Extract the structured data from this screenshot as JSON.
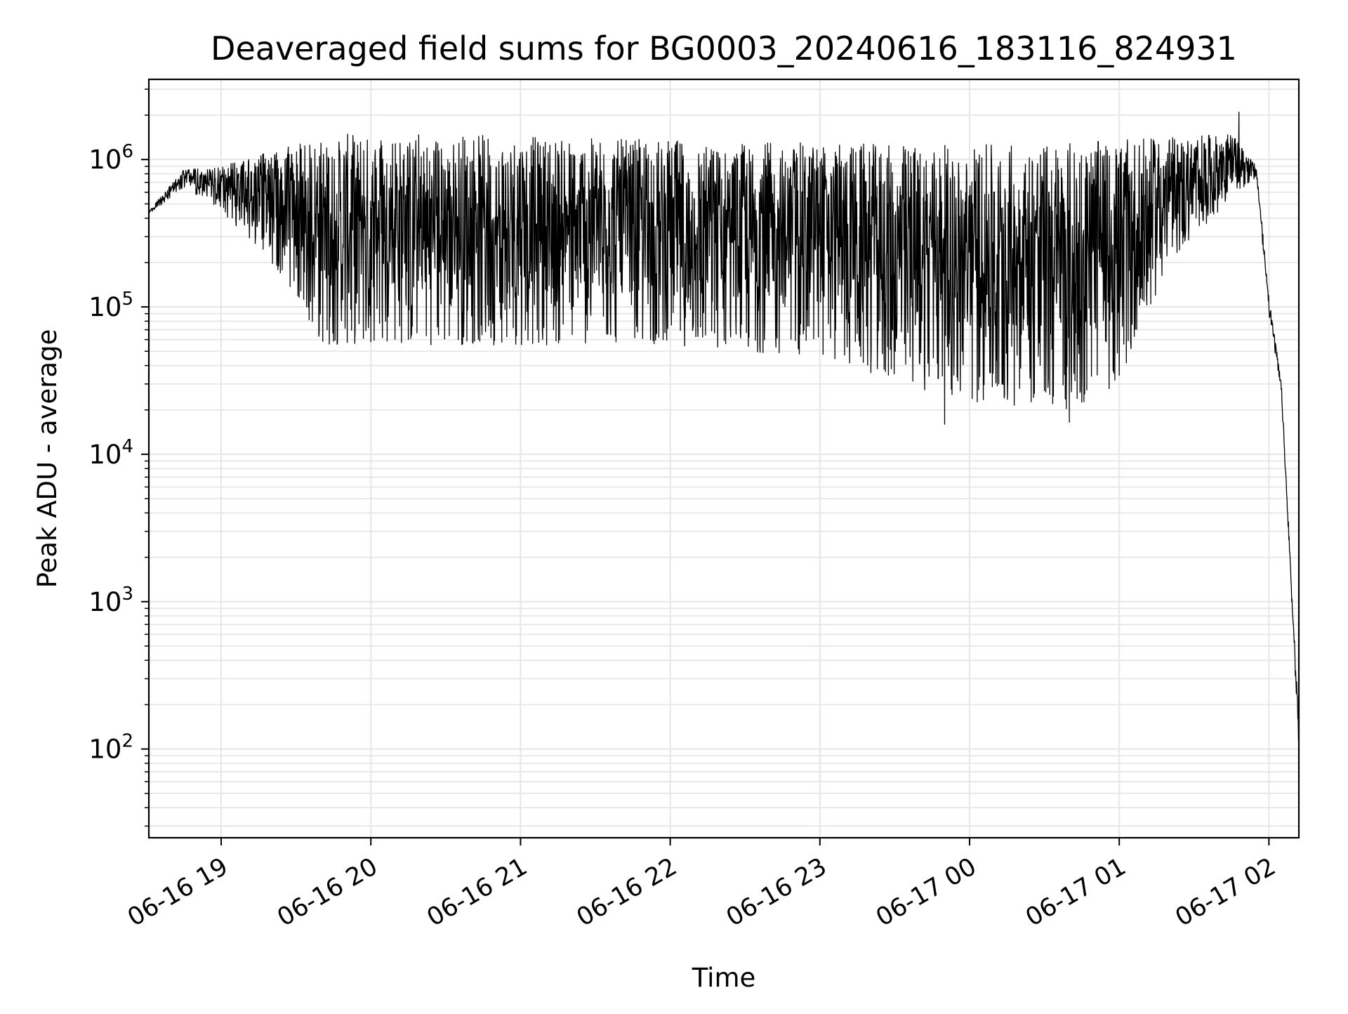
{
  "chart_data": {
    "type": "line",
    "title": "Deaveraged field sums for BG0003_20240616_183116_824931",
    "xlabel": "Time",
    "ylabel": "Peak ADU - average",
    "yscale": "log",
    "ylim": [
      25,
      3500000
    ],
    "xlim": [
      "2024-06-16 18:31",
      "2024-06-17 02:12"
    ],
    "grid": true,
    "line_color": "#000000",
    "grid_color": "#e6e6e6",
    "xticks": [
      {
        "time": "2024-06-16 19:00",
        "label": "06-16 19"
      },
      {
        "time": "2024-06-16 20:00",
        "label": "06-16 20"
      },
      {
        "time": "2024-06-16 21:00",
        "label": "06-16 21"
      },
      {
        "time": "2024-06-16 22:00",
        "label": "06-16 22"
      },
      {
        "time": "2024-06-16 23:00",
        "label": "06-16 23"
      },
      {
        "time": "2024-06-17 00:00",
        "label": "06-17 00"
      },
      {
        "time": "2024-06-17 01:00",
        "label": "06-17 01"
      },
      {
        "time": "2024-06-17 02:00",
        "label": "06-17 02"
      }
    ],
    "yticks": [
      {
        "value": 100,
        "base": "10",
        "exp": "2"
      },
      {
        "value": 1000,
        "base": "10",
        "exp": "3"
      },
      {
        "value": 10000,
        "base": "10",
        "exp": "4"
      },
      {
        "value": 100000,
        "base": "10",
        "exp": "5"
      },
      {
        "value": 1000000,
        "base": "10",
        "exp": "6"
      }
    ],
    "series": [
      {
        "upper_envelope": [
          {
            "x": "2024-06-16 18:31",
            "y": 450000
          },
          {
            "x": "2024-06-16 18:45",
            "y": 850000
          },
          {
            "x": "2024-06-16 19:00",
            "y": 900000
          },
          {
            "x": "2024-06-16 19:30",
            "y": 1300000
          },
          {
            "x": "2024-06-16 20:00",
            "y": 1600000
          },
          {
            "x": "2024-06-16 21:00",
            "y": 1450000
          },
          {
            "x": "2024-06-16 22:00",
            "y": 1350000
          },
          {
            "x": "2024-06-16 23:00",
            "y": 1300000
          },
          {
            "x": "2024-06-17 00:00",
            "y": 1250000
          },
          {
            "x": "2024-06-17 01:00",
            "y": 1350000
          },
          {
            "x": "2024-06-17 01:45",
            "y": 1500000
          },
          {
            "x": "2024-06-17 01:55",
            "y": 900000
          },
          {
            "x": "2024-06-17 02:00",
            "y": 120000
          },
          {
            "x": "2024-06-17 02:05",
            "y": 30000
          },
          {
            "x": "2024-06-17 02:12",
            "y": 150
          }
        ],
        "lower_envelope": [
          {
            "x": "2024-06-16 18:31",
            "y": 420000
          },
          {
            "x": "2024-06-16 18:45",
            "y": 650000
          },
          {
            "x": "2024-06-16 19:00",
            "y": 450000
          },
          {
            "x": "2024-06-16 19:20",
            "y": 200000
          },
          {
            "x": "2024-06-16 19:40",
            "y": 55000
          },
          {
            "x": "2024-06-16 20:00",
            "y": 55000
          },
          {
            "x": "2024-06-16 21:00",
            "y": 55000
          },
          {
            "x": "2024-06-16 22:00",
            "y": 55000
          },
          {
            "x": "2024-06-16 23:00",
            "y": 45000
          },
          {
            "x": "2024-06-17 00:00",
            "y": 22000
          },
          {
            "x": "2024-06-17 00:40",
            "y": 20000
          },
          {
            "x": "2024-06-17 01:00",
            "y": 30000
          },
          {
            "x": "2024-06-17 01:20",
            "y": 200000
          },
          {
            "x": "2024-06-17 01:45",
            "y": 550000
          },
          {
            "x": "2024-06-17 01:55",
            "y": 750000
          },
          {
            "x": "2024-06-17 02:00",
            "y": 90000
          },
          {
            "x": "2024-06-17 02:05",
            "y": 25000
          },
          {
            "x": "2024-06-17 02:12",
            "y": 100
          }
        ],
        "notable_points": [
          {
            "x": "2024-06-17 01:48",
            "y": 2100000
          },
          {
            "x": "2024-06-16 23:50",
            "y": 16000
          },
          {
            "x": "2024-06-17 00:40",
            "y": 16500
          }
        ]
      }
    ]
  }
}
